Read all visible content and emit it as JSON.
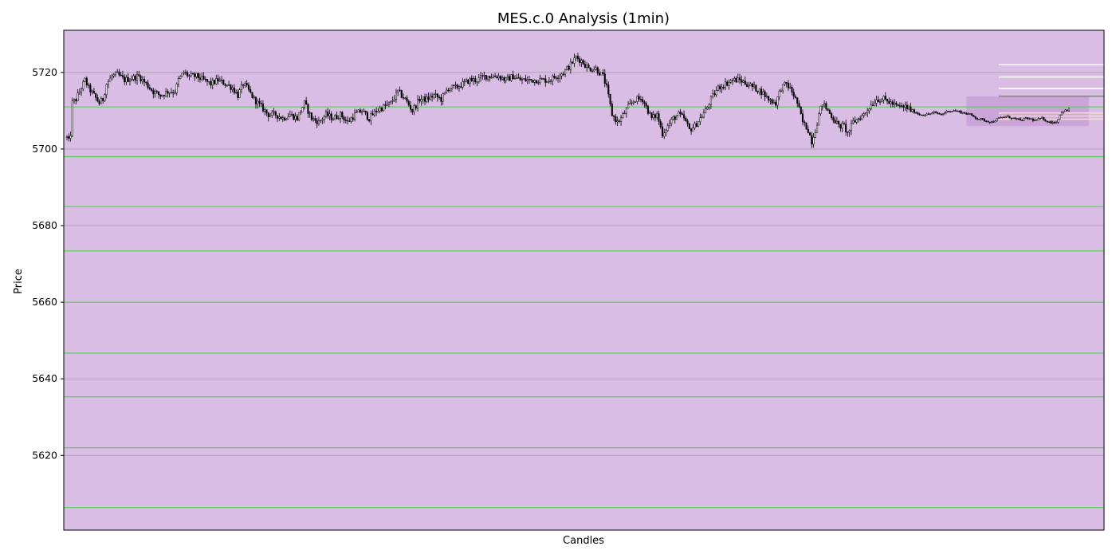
{
  "chart_data": {
    "type": "candlestick",
    "title": "MES.c.0 Analysis (1min)",
    "xlabel": "Candles",
    "ylabel": "Price",
    "ylim": [
      5600.5,
      5731
    ],
    "yticks": [
      5620,
      5640,
      5660,
      5680,
      5700,
      5720
    ],
    "grid": true,
    "background": "#d9bde4",
    "candle_color": "#000000",
    "grid_color": "#b0a0b8",
    "level_color": "#66cc66",
    "levels": [
      5711,
      5698,
      5685,
      5673.4,
      5660,
      5646.7,
      5635.3,
      5622,
      5606.4
    ],
    "consolidation_zone": {
      "x_start": 500,
      "x_end": 568,
      "y_low": 5706,
      "y_high": 5713.7,
      "color": "#c8a0d8"
    },
    "target_lines": [
      {
        "y": 5722,
        "color": "#ffffff"
      },
      {
        "y": 5718.8,
        "color": "#ffffff"
      },
      {
        "y": 5715.8,
        "color": "#ffffff"
      },
      {
        "y": 5713.8,
        "color": "#888888"
      },
      {
        "y": 5709.4,
        "color": "#f5e0c0"
      },
      {
        "y": 5708.6,
        "color": "#f5e0c0"
      },
      {
        "y": 5707.8,
        "color": "#f5e0c0"
      }
    ],
    "target_x_start": 518,
    "x_range": [
      0,
      557
    ],
    "path_points": [
      [
        0,
        5703
      ],
      [
        1,
        5702
      ],
      [
        2,
        5704
      ],
      [
        3,
        5712
      ],
      [
        5,
        5713
      ],
      [
        8,
        5716
      ],
      [
        10,
        5718
      ],
      [
        12,
        5716
      ],
      [
        15,
        5714
      ],
      [
        18,
        5712
      ],
      [
        20,
        5713
      ],
      [
        22,
        5717
      ],
      [
        25,
        5719
      ],
      [
        28,
        5719.5
      ],
      [
        32,
        5718
      ],
      [
        36,
        5718.5
      ],
      [
        40,
        5719
      ],
      [
        44,
        5717
      ],
      [
        48,
        5715
      ],
      [
        52,
        5714
      ],
      [
        56,
        5715
      ],
      [
        60,
        5715
      ],
      [
        62,
        5718
      ],
      [
        65,
        5720
      ],
      [
        68,
        5719
      ],
      [
        72,
        5719
      ],
      [
        76,
        5718
      ],
      [
        80,
        5717
      ],
      [
        84,
        5718
      ],
      [
        88,
        5717
      ],
      [
        92,
        5716
      ],
      [
        95,
        5714
      ],
      [
        98,
        5717
      ],
      [
        100,
        5716
      ],
      [
        104,
        5713
      ],
      [
        108,
        5711
      ],
      [
        112,
        5709
      ],
      [
        116,
        5709
      ],
      [
        120,
        5708
      ],
      [
        124,
        5709
      ],
      [
        128,
        5708
      ],
      [
        132,
        5712
      ],
      [
        136,
        5708
      ],
      [
        140,
        5707
      ],
      [
        144,
        5709
      ],
      [
        148,
        5708
      ],
      [
        152,
        5709
      ],
      [
        156,
        5707
      ],
      [
        160,
        5709
      ],
      [
        164,
        5710
      ],
      [
        168,
        5708
      ],
      [
        172,
        5710
      ],
      [
        176,
        5711
      ],
      [
        180,
        5712
      ],
      [
        184,
        5715
      ],
      [
        188,
        5713
      ],
      [
        192,
        5710
      ],
      [
        196,
        5713
      ],
      [
        200,
        5713
      ],
      [
        204,
        5714
      ],
      [
        208,
        5713
      ],
      [
        212,
        5716
      ],
      [
        216,
        5716
      ],
      [
        220,
        5717
      ],
      [
        224,
        5718
      ],
      [
        228,
        5718
      ],
      [
        232,
        5719
      ],
      [
        236,
        5719
      ],
      [
        240,
        5719
      ],
      [
        244,
        5718
      ],
      [
        248,
        5719
      ],
      [
        252,
        5718
      ],
      [
        256,
        5718
      ],
      [
        260,
        5718
      ],
      [
        264,
        5718
      ],
      [
        268,
        5718
      ],
      [
        272,
        5719
      ],
      [
        276,
        5720
      ],
      [
        280,
        5722
      ],
      [
        283,
        5724
      ],
      [
        286,
        5723
      ],
      [
        290,
        5721
      ],
      [
        294,
        5721
      ],
      [
        298,
        5719
      ],
      [
        300,
        5716
      ],
      [
        303,
        5709
      ],
      [
        306,
        5707
      ],
      [
        308,
        5708
      ],
      [
        312,
        5711
      ],
      [
        316,
        5713
      ],
      [
        320,
        5713
      ],
      [
        322,
        5711
      ],
      [
        325,
        5708
      ],
      [
        328,
        5709
      ],
      [
        331,
        5704
      ],
      [
        334,
        5706
      ],
      [
        337,
        5708
      ],
      [
        340,
        5709
      ],
      [
        343,
        5708
      ],
      [
        346,
        5705
      ],
      [
        349,
        5706
      ],
      [
        352,
        5708
      ],
      [
        355,
        5710
      ],
      [
        358,
        5713
      ],
      [
        362,
        5716
      ],
      [
        366,
        5717
      ],
      [
        370,
        5718
      ],
      [
        374,
        5718
      ],
      [
        378,
        5717
      ],
      [
        382,
        5716
      ],
      [
        386,
        5715
      ],
      [
        390,
        5713
      ],
      [
        394,
        5712
      ],
      [
        397,
        5716
      ],
      [
        400,
        5717
      ],
      [
        403,
        5715
      ],
      [
        406,
        5712
      ],
      [
        409,
        5707
      ],
      [
        412,
        5705
      ],
      [
        414,
        5702
      ],
      [
        416,
        5705
      ],
      [
        418,
        5709
      ],
      [
        420,
        5712
      ],
      [
        423,
        5710
      ],
      [
        426,
        5708
      ],
      [
        429,
        5706
      ],
      [
        432,
        5706
      ],
      [
        434,
        5704
      ],
      [
        437,
        5707
      ],
      [
        440,
        5708
      ],
      [
        443,
        5709
      ],
      [
        446,
        5711
      ],
      [
        450,
        5713
      ],
      [
        454,
        5713
      ],
      [
        458,
        5712
      ],
      [
        462,
        5711
      ],
      [
        466,
        5711
      ],
      [
        470,
        5710
      ],
      [
        474,
        5709
      ],
      [
        478,
        5709
      ],
      [
        482,
        5709.5
      ],
      [
        486,
        5709
      ],
      [
        490,
        5710
      ],
      [
        494,
        5710
      ],
      [
        498,
        5709.5
      ],
      [
        502,
        5709
      ],
      [
        506,
        5708
      ],
      [
        510,
        5707.5
      ],
      [
        514,
        5707
      ],
      [
        518,
        5708
      ],
      [
        522,
        5708.5
      ],
      [
        526,
        5708
      ],
      [
        530,
        5707.5
      ],
      [
        534,
        5708
      ],
      [
        538,
        5707.5
      ],
      [
        542,
        5708
      ],
      [
        546,
        5707
      ],
      [
        550,
        5707
      ],
      [
        552,
        5709
      ],
      [
        554,
        5710
      ],
      [
        556,
        5710
      ],
      [
        557,
        5710.5
      ]
    ]
  }
}
